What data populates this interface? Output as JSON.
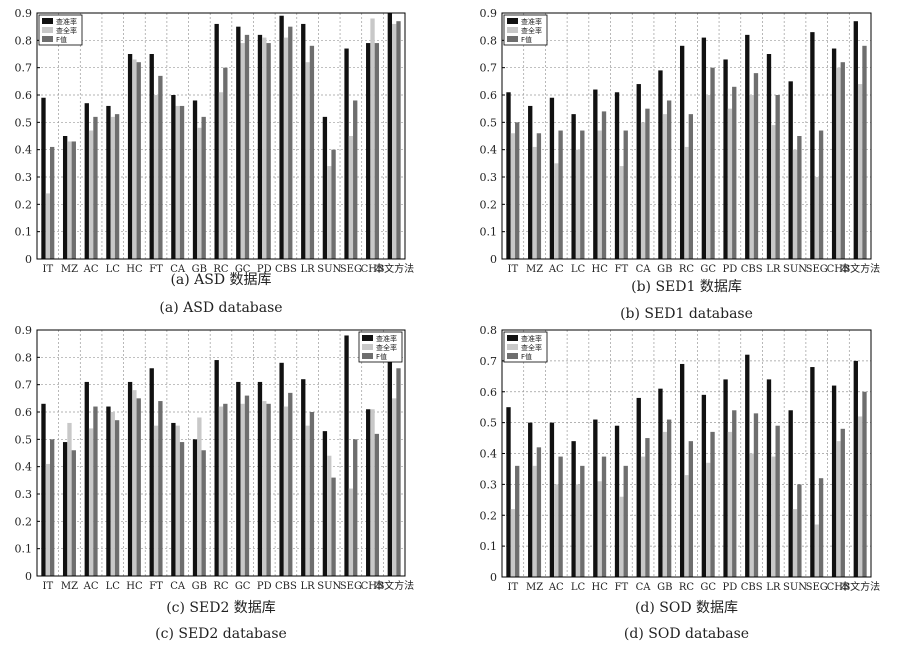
{
  "colors": {
    "precision": "#111111",
    "recall": "#c8c8c8",
    "fvalue": "#6e6e6e",
    "grid": "#9a9a9a"
  },
  "legend_labels": [
    "查准率",
    "查全率",
    "F值"
  ],
  "chart_data": [
    {
      "type": "bar",
      "caption_cn": "(a) ASD 数据库",
      "caption_en": "(a) ASD database",
      "categories": [
        "IT",
        "MZ",
        "AC",
        "LC",
        "HC",
        "FT",
        "CA",
        "GB",
        "RC",
        "GC",
        "PD",
        "CBS",
        "LR",
        "SUN",
        "SEG",
        "CHB",
        "本文方法"
      ],
      "ylim": [
        0,
        0.9
      ],
      "yticks": [
        "0",
        "0.1",
        "0.2",
        "0.3",
        "0.4",
        "0.5",
        "0.6",
        "0.7",
        "0.8",
        "0.9"
      ],
      "legend_position": "top-left",
      "grid": true,
      "series": [
        {
          "name": "查准率",
          "values": [
            0.59,
            0.45,
            0.57,
            0.56,
            0.75,
            0.75,
            0.6,
            0.58,
            0.86,
            0.85,
            0.82,
            0.89,
            0.86,
            0.52,
            0.77,
            0.79,
            0.9
          ]
        },
        {
          "name": "查全率",
          "values": [
            0.24,
            0.43,
            0.47,
            0.52,
            0.73,
            0.6,
            0.56,
            0.48,
            0.61,
            0.79,
            0.81,
            0.81,
            0.72,
            0.34,
            0.45,
            0.88,
            0.86
          ]
        },
        {
          "name": "F值",
          "values": [
            0.41,
            0.43,
            0.52,
            0.53,
            0.72,
            0.67,
            0.56,
            0.52,
            0.7,
            0.82,
            0.79,
            0.85,
            0.78,
            0.4,
            0.58,
            0.79,
            0.87
          ]
        }
      ]
    },
    {
      "type": "bar",
      "caption_cn": "(b) SED1 数据库",
      "caption_en": "(b) SED1 database",
      "categories": [
        "IT",
        "MZ",
        "AC",
        "LC",
        "HC",
        "FT",
        "CA",
        "GB",
        "RC",
        "GC",
        "PD",
        "CBS",
        "LR",
        "SUN",
        "SEG",
        "CHB",
        "本文方法"
      ],
      "ylim": [
        0,
        0.9
      ],
      "yticks": [
        "0",
        "0.1",
        "0.2",
        "0.3",
        "0.4",
        "0.5",
        "0.6",
        "0.7",
        "0.8",
        "0.9"
      ],
      "legend_position": "top-left",
      "grid": true,
      "series": [
        {
          "name": "查准率",
          "values": [
            0.61,
            0.56,
            0.59,
            0.53,
            0.62,
            0.61,
            0.64,
            0.69,
            0.78,
            0.81,
            0.73,
            0.82,
            0.75,
            0.65,
            0.83,
            0.77,
            0.87
          ]
        },
        {
          "name": "查全率",
          "values": [
            0.46,
            0.41,
            0.35,
            0.4,
            0.47,
            0.34,
            0.5,
            0.53,
            0.41,
            0.6,
            0.55,
            0.6,
            0.49,
            0.4,
            0.3,
            0.7,
            0.64
          ]
        },
        {
          "name": "F值",
          "values": [
            0.5,
            0.46,
            0.47,
            0.47,
            0.54,
            0.47,
            0.55,
            0.58,
            0.53,
            0.7,
            0.63,
            0.68,
            0.6,
            0.45,
            0.47,
            0.72,
            0.78
          ]
        }
      ]
    },
    {
      "type": "bar",
      "caption_cn": "(c) SED2 数据库",
      "caption_en": "(c) SED2 database",
      "categories": [
        "IT",
        "MZ",
        "AC",
        "LC",
        "HC",
        "FT",
        "CA",
        "GB",
        "RC",
        "GC",
        "PD",
        "CBS",
        "LR",
        "SUN",
        "SEG",
        "CHB",
        "本文方法"
      ],
      "ylim": [
        0,
        0.9
      ],
      "yticks": [
        "0",
        "0.1",
        "0.2",
        "0.3",
        "0.4",
        "0.5",
        "0.6",
        "0.7",
        "0.8",
        "0.9"
      ],
      "legend_position": "top-right",
      "grid": true,
      "series": [
        {
          "name": "查准率",
          "values": [
            0.63,
            0.49,
            0.71,
            0.62,
            0.71,
            0.76,
            0.56,
            0.5,
            0.79,
            0.71,
            0.71,
            0.78,
            0.72,
            0.53,
            0.88,
            0.61,
            0.85
          ]
        },
        {
          "name": "查全率",
          "values": [
            0.41,
            0.56,
            0.54,
            0.6,
            0.68,
            0.55,
            0.55,
            0.58,
            0.62,
            0.63,
            0.64,
            0.62,
            0.55,
            0.44,
            0.32,
            0.61,
            0.65
          ]
        },
        {
          "name": "F值",
          "values": [
            0.5,
            0.46,
            0.62,
            0.57,
            0.65,
            0.64,
            0.49,
            0.46,
            0.63,
            0.66,
            0.63,
            0.67,
            0.6,
            0.36,
            0.5,
            0.52,
            0.76
          ]
        }
      ]
    },
    {
      "type": "bar",
      "caption_cn": "(d) SOD 数据库",
      "caption_en": "(d) SOD database",
      "categories": [
        "IT",
        "MZ",
        "AC",
        "LC",
        "HC",
        "FT",
        "CA",
        "GB",
        "RC",
        "GC",
        "PD",
        "CBS",
        "LR",
        "SUN",
        "SEG",
        "CHB",
        "本文方法"
      ],
      "ylim": [
        0,
        0.8
      ],
      "yticks": [
        "0",
        "0.1",
        "0.2",
        "0.3",
        "0.4",
        "0.5",
        "0.6",
        "0.7",
        "0.8"
      ],
      "legend_position": "top-left",
      "grid": true,
      "series": [
        {
          "name": "查准率",
          "values": [
            0.55,
            0.5,
            0.5,
            0.44,
            0.51,
            0.49,
            0.58,
            0.61,
            0.69,
            0.59,
            0.64,
            0.72,
            0.64,
            0.54,
            0.68,
            0.62,
            0.7
          ]
        },
        {
          "name": "查全率",
          "values": [
            0.22,
            0.36,
            0.3,
            0.3,
            0.31,
            0.26,
            0.39,
            0.47,
            0.33,
            0.37,
            0.47,
            0.4,
            0.39,
            0.22,
            0.17,
            0.44,
            0.52
          ]
        },
        {
          "name": "F值",
          "values": [
            0.36,
            0.42,
            0.39,
            0.36,
            0.39,
            0.36,
            0.45,
            0.51,
            0.44,
            0.47,
            0.54,
            0.53,
            0.49,
            0.3,
            0.32,
            0.48,
            0.6
          ]
        }
      ]
    }
  ]
}
